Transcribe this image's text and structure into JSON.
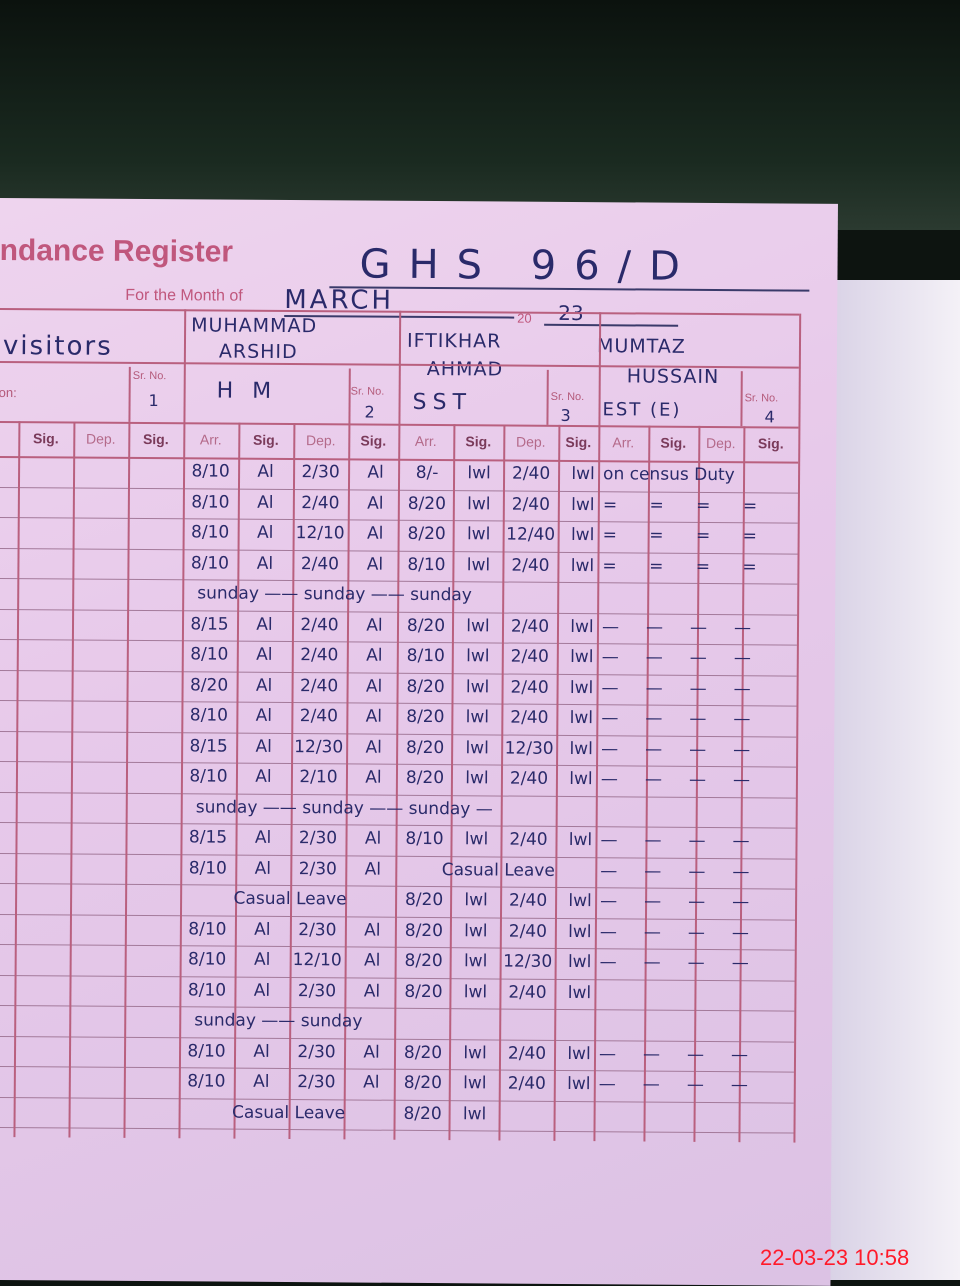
{
  "register": {
    "title": "ndance Register",
    "school": "GHS 96/D",
    "month_label": "For the Month of",
    "month": "MARCH",
    "year_prefix": "20",
    "year": "23"
  },
  "visitors_label": "visitors",
  "on_label": "on:",
  "sr_label": "Sr. No.",
  "col_headers": [
    "Sig.",
    "Dep.",
    "Sig.",
    "Arr.",
    "Sig.",
    "Dep.",
    "Sig.",
    "Arr.",
    "Sig.",
    "Dep.",
    "Sig.",
    "Arr.",
    "Sig.",
    "Dep.",
    "Sig."
  ],
  "staff": [
    {
      "name1": "MUHAMMAD",
      "name2": "ARSHID",
      "designation": "H M",
      "sr": "1"
    },
    {
      "name1": "IFTIKHAR",
      "name2": "AHMAD",
      "designation": "SST",
      "sr": "2"
    },
    {
      "name1": "MUMTAZ",
      "name2": "HUSSAIN",
      "designation": "EST (E)",
      "sr": "3"
    },
    {
      "sr": "4"
    }
  ],
  "rows": [
    {
      "a": [
        "8/10",
        "Al",
        "2/30",
        "Al"
      ],
      "b": [
        "8/-",
        "lwl",
        "2/40",
        "lwl"
      ],
      "c": "on census Duty"
    },
    {
      "a": [
        "8/10",
        "Al",
        "2/40",
        "Al"
      ],
      "b": [
        "8/20",
        "lwl",
        "2/40",
        "lwl"
      ],
      "c": "=      =      =      ="
    },
    {
      "a": [
        "8/10",
        "Al",
        "12/10",
        "Al"
      ],
      "b": [
        "8/20",
        "lwl",
        "12/40",
        "lwl"
      ],
      "c": "=      =      =      ="
    },
    {
      "a": [
        "8/10",
        "Al",
        "2/40",
        "Al"
      ],
      "b": [
        "8/10",
        "lwl",
        "2/40",
        "lwl"
      ],
      "c": "=      =      =      ="
    },
    {
      "full": "sunday —— sunday —— sunday"
    },
    {
      "a": [
        "8/15",
        "Al",
        "2/40",
        "Al"
      ],
      "b": [
        "8/20",
        "lwl",
        "2/40",
        "lwl"
      ],
      "c": "—     —     —     —"
    },
    {
      "a": [
        "8/10",
        "Al",
        "2/40",
        "Al"
      ],
      "b": [
        "8/10",
        "lwl",
        "2/40",
        "lwl"
      ],
      "c": "—     —     —     —"
    },
    {
      "a": [
        "8/20",
        "Al",
        "2/40",
        "Al"
      ],
      "b": [
        "8/20",
        "lwl",
        "2/40",
        "lwl"
      ],
      "c": "—     —     —     —"
    },
    {
      "a": [
        "8/10",
        "Al",
        "2/40",
        "Al"
      ],
      "b": [
        "8/20",
        "lwl",
        "2/40",
        "lwl"
      ],
      "c": "—     —     —     —"
    },
    {
      "a": [
        "8/15",
        "Al",
        "12/30",
        "Al"
      ],
      "b": [
        "8/20",
        "lwl",
        "12/30",
        "lwl"
      ],
      "c": "—     —     —     —"
    },
    {
      "a": [
        "8/10",
        "Al",
        "2/10",
        "Al"
      ],
      "b": [
        "8/20",
        "lwl",
        "2/40",
        "lwl"
      ],
      "c": "—     —     —     —"
    },
    {
      "full": "sunday —— sunday —— sunday —"
    },
    {
      "a": [
        "8/15",
        "Al",
        "2/30",
        "Al"
      ],
      "b": [
        "8/10",
        "lwl",
        "2/40",
        "lwl"
      ],
      "c": "—     —     —     —"
    },
    {
      "a": [
        "8/10",
        "Al",
        "2/30",
        "Al"
      ],
      "bfull": "Casual Leave",
      "c": "—     —     —     —"
    },
    {
      "afull": "Casual Leave",
      "b": [
        "8/20",
        "lwl",
        "2/40",
        "lwl"
      ],
      "c": "—     —     —     —"
    },
    {
      "a": [
        "8/10",
        "Al",
        "2/30",
        "Al"
      ],
      "b": [
        "8/20",
        "lwl",
        "2/40",
        "lwl"
      ],
      "c": "—     —     —     —"
    },
    {
      "a": [
        "8/10",
        "Al",
        "12/10",
        "Al"
      ],
      "b": [
        "8/20",
        "lwl",
        "12/30",
        "lwl"
      ],
      "c": "—     —     —     —"
    },
    {
      "a": [
        "8/10",
        "Al",
        "2/30",
        "Al"
      ],
      "b": [
        "8/20",
        "lwl",
        "2/40",
        "lwl"
      ],
      "c": ""
    },
    {
      "full": "sunday ——           sunday"
    },
    {
      "a": [
        "8/10",
        "Al",
        "2/30",
        "Al"
      ],
      "b": [
        "8/20",
        "lwl",
        "2/40",
        "lwl"
      ],
      "c": "—     —     —     —"
    },
    {
      "a": [
        "8/10",
        "Al",
        "2/30",
        "Al"
      ],
      "b": [
        "8/20",
        "lwl",
        "2/40",
        "lwl"
      ],
      "c": "—     —     —     —"
    },
    {
      "afull": "Casual Leave",
      "b": [
        "8/20",
        "lwl",
        "",
        ""
      ],
      "c": ""
    }
  ],
  "timestamp": "22-03-23  10:58",
  "colors": {
    "ink": "#2a2a6a",
    "print": "#c0577d",
    "page": "#e7c9ea",
    "timestamp": "#ff1a2a"
  }
}
